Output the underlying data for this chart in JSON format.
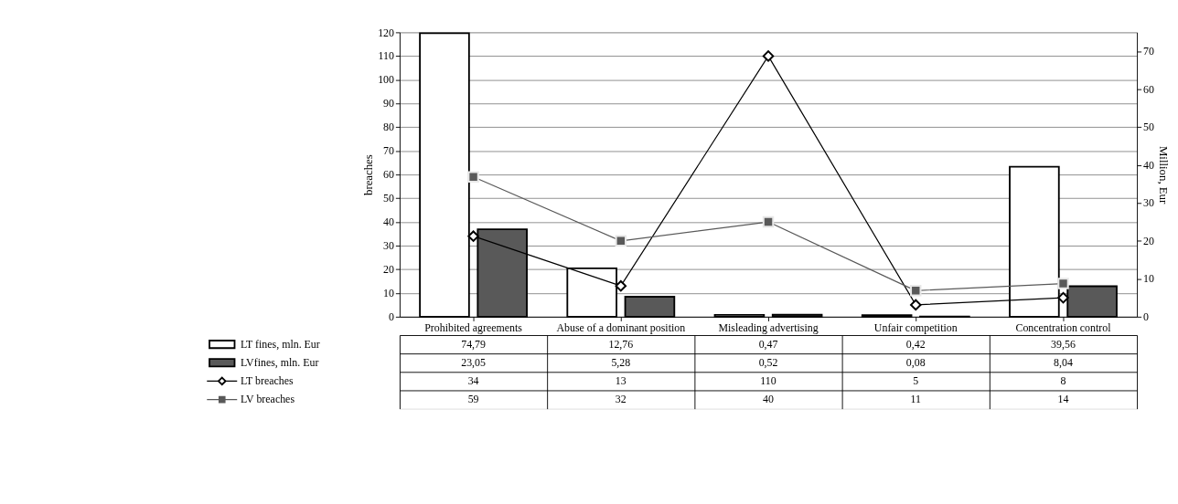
{
  "chart_data": {
    "type": "bar",
    "categories": [
      "Prohibited agreements",
      "Abuse of a dominant position",
      "Misleading advertising",
      "Unfair competition",
      "Concentration control"
    ],
    "ylabel": "breaches",
    "y2label": "Million,  Eur",
    "ylim": [
      0,
      120
    ],
    "yticks": [
      0,
      10,
      20,
      30,
      40,
      50,
      60,
      70,
      80,
      90,
      100,
      110,
      120
    ],
    "y2lim": [
      0,
      75
    ],
    "y2ticks": [
      0,
      10,
      20,
      30,
      40,
      50,
      60,
      70
    ],
    "grid": "y",
    "legend": "bottom",
    "series": [
      {
        "name": "LT fines, mln. Eur",
        "axis": "y2",
        "color": "#ffffff",
        "values": [
          74.79,
          12.76,
          0.47,
          0.42,
          39.56
        ],
        "value_labels": [
          "74,79",
          "12,76",
          "0,47",
          "0,42",
          "39,56"
        ]
      },
      {
        "name": "LVfines, mln. Eur",
        "axis": "y2",
        "color": "#595959",
        "values": [
          23.05,
          5.28,
          0.52,
          0.08,
          8.04
        ],
        "value_labels": [
          "23,05",
          "5,28",
          "0,52",
          "0,08",
          "8,04"
        ]
      },
      {
        "name": "LT breaches",
        "type": "line",
        "marker": "diamond",
        "color": "#000000",
        "values": [
          34,
          13,
          110,
          5,
          8
        ],
        "value_labels": [
          "34",
          "13",
          "110",
          "5",
          "8"
        ]
      },
      {
        "name": "LV breaches",
        "type": "line",
        "marker": "square",
        "color": "#595959",
        "values": [
          59,
          32,
          40,
          11,
          14
        ],
        "value_labels": [
          "59",
          "32",
          "40",
          "11",
          "14"
        ]
      }
    ]
  }
}
